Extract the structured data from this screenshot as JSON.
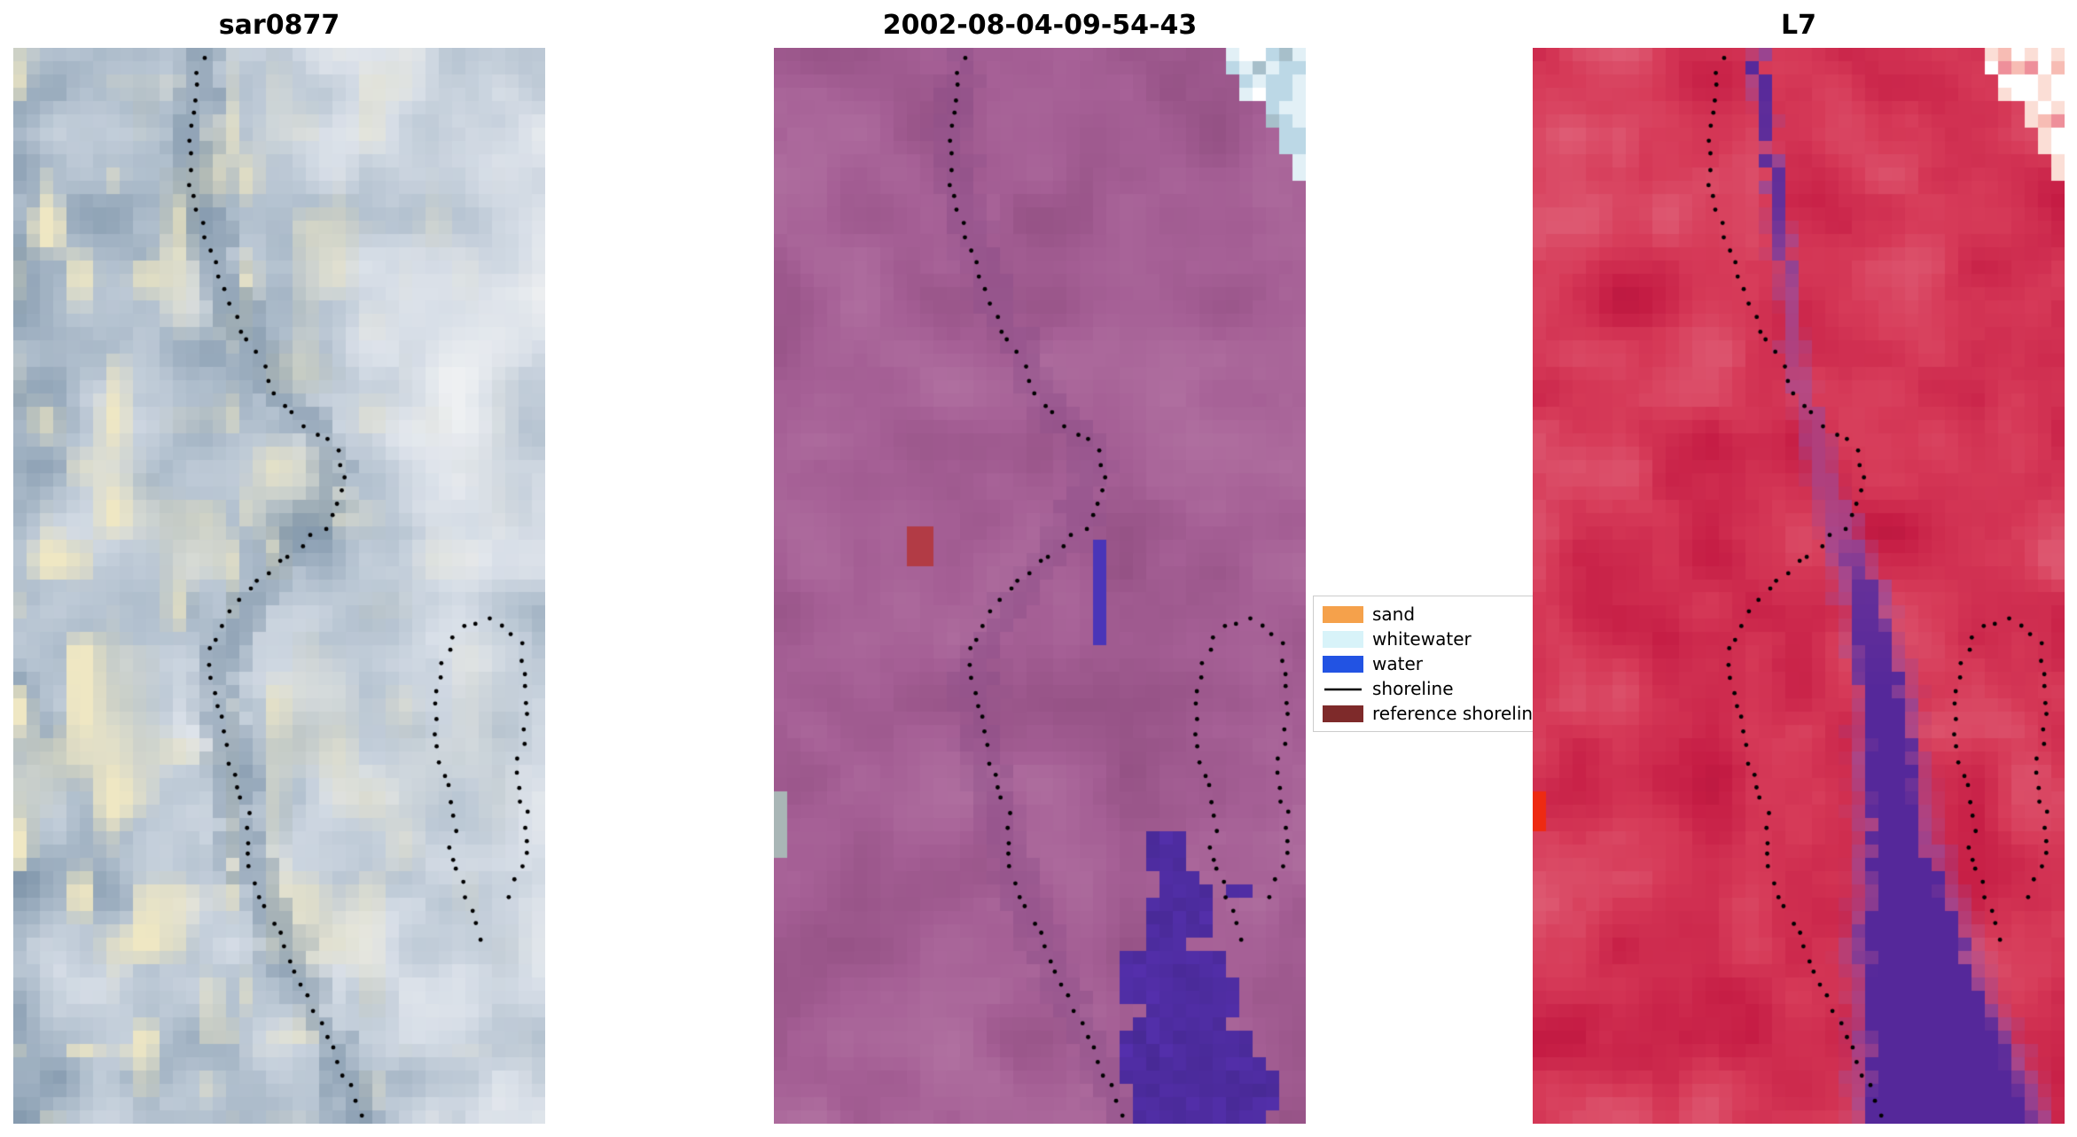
{
  "figure": {
    "background": "#ffffff"
  },
  "legend": {
    "entries": [
      {
        "label": "sand",
        "color": "#f5a14b",
        "marker": "patch"
      },
      {
        "label": "whitewater",
        "color": "#d8f3f9",
        "marker": "patch"
      },
      {
        "label": "water",
        "color": "#2253e3",
        "marker": "patch"
      },
      {
        "label": "shoreline",
        "color": "#000000",
        "marker": "line"
      },
      {
        "label": "reference shoreline",
        "color": "#7e2a2a",
        "marker": "patch"
      }
    ]
  },
  "chart_data": {
    "type": "image",
    "layout": "1x3 subplots: three co-registered coastal satellite tiles with detected shoreline points overlaid as black dots; legend between panels 2 and 3",
    "legend_labels": [
      "sand",
      "whitewater",
      "water",
      "shoreline",
      "reference shoreline"
    ],
    "panels": [
      {
        "title": "sar0877",
        "kind": "sar",
        "seed": 11,
        "palette": [
          "#5c748f",
          "#879cb0",
          "#b3c1cf",
          "#d7dee7",
          "#eef0f2"
        ],
        "contrast": {
          "bias": 0.02,
          "gain": 0.82,
          "ugrad": 0.3
        },
        "tint": "#efe7c3",
        "channel": {
          "path_v": [
            0,
            0.08,
            0.16,
            0.24,
            0.32,
            0.38,
            0.44,
            0.52,
            0.58,
            0.66,
            0.74,
            0.84,
            0.93,
            1.0
          ],
          "path_u": [
            0.36,
            0.33,
            0.36,
            0.42,
            0.5,
            0.6,
            0.57,
            0.44,
            0.37,
            0.4,
            0.43,
            0.51,
            0.6,
            0.66
          ],
          "halfwidth": 0.055,
          "alpha": 0.55,
          "jitter": 0.05,
          "edge": "#7b91a6",
          "core": "#647f99"
        },
        "features": []
      },
      {
        "title": "2002-08-04-09-54-43",
        "kind": "optical",
        "seed": 23,
        "palette": [
          "#7f4276",
          "#945184",
          "#a55f95",
          "#b273a2",
          "#bd84ad"
        ],
        "contrast": {
          "bias": 0.18,
          "gain": 0.62,
          "ugrad": 0.0
        },
        "tint": "",
        "channel": {
          "path_v": [
            0,
            0.08,
            0.16,
            0.24,
            0.32,
            0.38,
            0.44,
            0.52,
            0.58,
            0.66,
            0.74,
            0.84,
            0.93,
            1.0
          ],
          "path_u": [
            0.36,
            0.33,
            0.36,
            0.42,
            0.5,
            0.6,
            0.57,
            0.44,
            0.37,
            0.4,
            0.43,
            0.51,
            0.6,
            0.66
          ],
          "halfwidth": 0.05,
          "alpha": 0.45,
          "jitter": 0.05,
          "edge": "#8a4d87",
          "core": "#774389"
        },
        "features": [
          {
            "type": "blob",
            "x": 0.283,
            "y": 0.461,
            "r": 0.033,
            "color": "#b23b45"
          },
          {
            "type": "rect",
            "x": 0.594,
            "y": 0.457,
            "w": 0.03,
            "h": 0.093,
            "color": "#4a35b8"
          },
          {
            "type": "rect",
            "x": 0.0,
            "y": 0.69,
            "w": 0.032,
            "h": 0.057,
            "color": "#a9b6b6"
          },
          {
            "type": "waterblobs",
            "color": "#5530ae",
            "circles": [
              [
                0.745,
                0.745,
                0.04
              ],
              [
                0.77,
                0.8,
                0.065
              ],
              [
                0.72,
                0.865,
                0.07
              ],
              [
                0.8,
                0.875,
                0.07
              ],
              [
                0.73,
                0.935,
                0.075
              ],
              [
                0.845,
                0.945,
                0.07
              ],
              [
                0.78,
                0.985,
                0.085
              ],
              [
                0.905,
                0.975,
                0.05
              ],
              [
                0.875,
                0.78,
                0.018
              ]
            ]
          },
          {
            "type": "corner",
            "u0": 0.85,
            "slope": 1.3,
            "vmax": 0.135,
            "colors": [
              "#ffffff",
              "#e2f0f6",
              "#bcd8e6",
              "#a7bfca"
            ]
          }
        ]
      },
      {
        "title": "L7",
        "kind": "optical",
        "seed": 37,
        "palette": [
          "#a81238",
          "#c51c44",
          "#d63a58",
          "#e0637a",
          "#e99aa8"
        ],
        "contrast": {
          "bias": 0.12,
          "gain": 0.68,
          "ugrad": 0.0
        },
        "tint": "",
        "channel": {
          "path_v": [
            0,
            0.15,
            0.3,
            0.42,
            0.5,
            0.6,
            0.72,
            0.85,
            1.0
          ],
          "path_u": [
            0.42,
            0.46,
            0.5,
            0.56,
            0.62,
            0.66,
            0.68,
            0.72,
            0.79
          ],
          "halfwidth": [
            0.022,
            0.024,
            0.028,
            0.045,
            0.06,
            0.07,
            0.095,
            0.15,
            0.21
          ],
          "alpha": [
            0.95,
            0.9,
            0.55,
            0.6,
            0.9,
            0.95,
            0.95,
            0.95,
            0.95
          ],
          "jitter": 0.03,
          "edge": "#9a4f9f",
          "core": "#45209a"
        },
        "features": [
          {
            "type": "rect",
            "x": 0.0,
            "y": 0.694,
            "w": 0.027,
            "h": 0.037,
            "color": "#ee2a12"
          },
          {
            "type": "corner",
            "u0": 0.85,
            "slope": 1.3,
            "vmax": 0.135,
            "colors": [
              "#f7bcb4",
              "#fbded6",
              "#ffffff",
              "#ee8f9a"
            ]
          }
        ]
      }
    ],
    "shorelines": [
      [
        [
          0.355,
          0.008
        ],
        [
          0.338,
          0.048
        ],
        [
          0.328,
          0.09
        ],
        [
          0.336,
          0.128
        ],
        [
          0.354,
          0.163
        ],
        [
          0.377,
          0.197
        ],
        [
          0.403,
          0.231
        ],
        [
          0.433,
          0.264
        ],
        [
          0.466,
          0.296
        ],
        [
          0.504,
          0.325
        ],
        [
          0.545,
          0.349
        ],
        [
          0.586,
          0.363
        ],
        [
          0.612,
          0.372
        ],
        [
          0.622,
          0.4
        ],
        [
          0.612,
          0.428
        ],
        [
          0.582,
          0.447
        ],
        [
          0.543,
          0.462
        ],
        [
          0.502,
          0.478
        ],
        [
          0.462,
          0.495
        ],
        [
          0.424,
          0.513
        ],
        [
          0.393,
          0.533
        ],
        [
          0.37,
          0.556
        ],
        [
          0.366,
          0.582
        ],
        [
          0.378,
          0.608
        ],
        [
          0.394,
          0.633
        ],
        [
          0.404,
          0.659
        ],
        [
          0.424,
          0.691
        ],
        [
          0.444,
          0.721
        ],
        [
          0.436,
          0.753
        ],
        [
          0.464,
          0.782
        ],
        [
          0.486,
          0.811
        ],
        [
          0.509,
          0.839
        ],
        [
          0.534,
          0.866
        ],
        [
          0.564,
          0.893
        ],
        [
          0.594,
          0.92
        ],
        [
          0.618,
          0.947
        ],
        [
          0.643,
          0.974
        ],
        [
          0.655,
          0.995
        ]
      ],
      [
        [
          0.826,
          0.548
        ],
        [
          0.858,
          0.534
        ],
        [
          0.893,
          0.53
        ],
        [
          0.926,
          0.538
        ],
        [
          0.952,
          0.556
        ],
        [
          0.966,
          0.582
        ],
        [
          0.968,
          0.612
        ],
        [
          0.958,
          0.64
        ],
        [
          0.95,
          0.668
        ],
        [
          0.956,
          0.696
        ],
        [
          0.966,
          0.722
        ],
        [
          0.962,
          0.75
        ],
        [
          0.946,
          0.772
        ],
        [
          0.926,
          0.79
        ]
      ],
      [
        [
          0.82,
          0.56
        ],
        [
          0.8,
          0.584
        ],
        [
          0.79,
          0.612
        ],
        [
          0.794,
          0.64
        ],
        [
          0.806,
          0.666
        ],
        [
          0.82,
          0.692
        ],
        [
          0.83,
          0.718
        ],
        [
          0.826,
          0.744
        ],
        [
          0.836,
          0.768
        ],
        [
          0.852,
          0.79
        ],
        [
          0.868,
          0.812
        ],
        [
          0.88,
          0.836
        ]
      ]
    ]
  }
}
